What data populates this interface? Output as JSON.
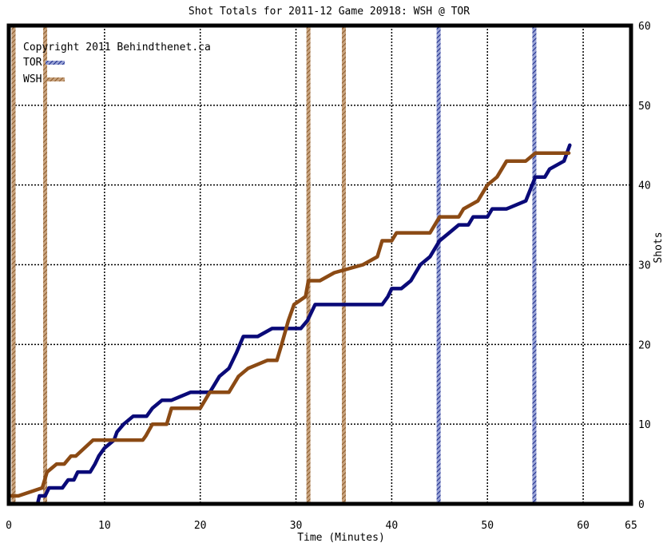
{
  "chart_data": {
    "type": "line",
    "title": "Shot Totals for 2011-12 Game 20918: WSH @ TOR",
    "xlabel": "Time (Minutes)",
    "ylabel": "Shots",
    "xlim": [
      0,
      65
    ],
    "ylim": [
      0,
      60
    ],
    "x_ticks": [
      "0",
      "10",
      "20",
      "30",
      "40",
      "50",
      "60",
      "65"
    ],
    "y_ticks": [
      "0",
      "10",
      "20",
      "30",
      "40",
      "50",
      "60"
    ],
    "grid": true,
    "legend_position": "top-left",
    "copyright": "Copyright 2011 Behindthenet.ca",
    "series": [
      {
        "name": "TOR",
        "color": "#0a0a78",
        "points": [
          [
            0,
            0
          ],
          [
            2,
            0
          ],
          [
            3,
            0
          ],
          [
            3.2,
            1
          ],
          [
            3.8,
            1
          ],
          [
            4.2,
            2
          ],
          [
            5.6,
            2
          ],
          [
            6.2,
            3
          ],
          [
            6.8,
            3
          ],
          [
            7.2,
            4
          ],
          [
            8.5,
            4
          ],
          [
            9,
            5
          ],
          [
            9.4,
            6
          ],
          [
            10,
            7
          ],
          [
            11,
            8
          ],
          [
            11.3,
            9
          ],
          [
            12,
            10
          ],
          [
            13,
            11
          ],
          [
            14.4,
            11
          ],
          [
            15,
            12
          ],
          [
            16,
            13
          ],
          [
            17,
            13
          ],
          [
            18,
            13.5
          ],
          [
            19,
            14
          ],
          [
            20,
            14
          ],
          [
            21,
            14
          ],
          [
            21.5,
            15
          ],
          [
            22,
            16
          ],
          [
            23,
            17
          ],
          [
            23.8,
            19
          ],
          [
            24.5,
            21
          ],
          [
            26,
            21
          ],
          [
            27.5,
            22
          ],
          [
            29,
            22
          ],
          [
            30.5,
            22
          ],
          [
            31.2,
            23
          ],
          [
            32,
            25
          ],
          [
            34,
            25
          ],
          [
            36,
            25
          ],
          [
            39,
            25
          ],
          [
            39.6,
            26
          ],
          [
            40,
            27
          ],
          [
            41,
            27
          ],
          [
            42,
            28
          ],
          [
            42.5,
            29
          ],
          [
            43,
            30
          ],
          [
            44,
            31
          ],
          [
            45,
            33
          ],
          [
            46,
            34
          ],
          [
            47,
            35
          ],
          [
            48,
            35
          ],
          [
            48.5,
            36
          ],
          [
            50,
            36
          ],
          [
            50.5,
            37
          ],
          [
            52,
            37
          ],
          [
            54,
            38
          ],
          [
            55,
            41
          ],
          [
            56,
            41
          ],
          [
            56.5,
            42
          ],
          [
            58,
            43
          ],
          [
            58.6,
            45
          ]
        ],
        "stepped": false
      },
      {
        "name": "WSH",
        "color": "#8b4a14",
        "points": [
          [
            0,
            1
          ],
          [
            1,
            1
          ],
          [
            3.5,
            2
          ],
          [
            4,
            4
          ],
          [
            5,
            5
          ],
          [
            5.8,
            5
          ],
          [
            6.5,
            6
          ],
          [
            7,
            6
          ],
          [
            8.8,
            8
          ],
          [
            10,
            8
          ],
          [
            12,
            8
          ],
          [
            13,
            8
          ],
          [
            14,
            8
          ],
          [
            14.3,
            8.5
          ],
          [
            15,
            10
          ],
          [
            16.5,
            10
          ],
          [
            17,
            12
          ],
          [
            18,
            12
          ],
          [
            19,
            12
          ],
          [
            20,
            12
          ],
          [
            20.5,
            13
          ],
          [
            21,
            14
          ],
          [
            23,
            14
          ],
          [
            24,
            16
          ],
          [
            25,
            17
          ],
          [
            26,
            17.5
          ],
          [
            27,
            18
          ],
          [
            28,
            18
          ],
          [
            28.5,
            20
          ],
          [
            29.2,
            23
          ],
          [
            29.8,
            25
          ],
          [
            31,
            26
          ],
          [
            31.3,
            28
          ],
          [
            32.5,
            28
          ],
          [
            34,
            29
          ],
          [
            37,
            30
          ],
          [
            38.5,
            31
          ],
          [
            39,
            33
          ],
          [
            40,
            33
          ],
          [
            40.5,
            34
          ],
          [
            44,
            34
          ],
          [
            45,
            36
          ],
          [
            46,
            36
          ],
          [
            47,
            36
          ],
          [
            47.5,
            37
          ],
          [
            49,
            38
          ],
          [
            50,
            40
          ],
          [
            51,
            41
          ],
          [
            52,
            43
          ],
          [
            53,
            43
          ],
          [
            54,
            43
          ],
          [
            55,
            44
          ],
          [
            56,
            44
          ],
          [
            58.5,
            44
          ]
        ],
        "stepped": false
      }
    ],
    "period_markers": [
      {
        "x": 0.5,
        "team": "WSH"
      },
      {
        "x": 3.8,
        "team": "WSH"
      },
      {
        "x": 31.3,
        "team": "WSH"
      },
      {
        "x": 35.0,
        "team": "WSH"
      },
      {
        "x": 44.9,
        "team": "TOR"
      },
      {
        "x": 54.9,
        "team": "TOR"
      }
    ]
  }
}
